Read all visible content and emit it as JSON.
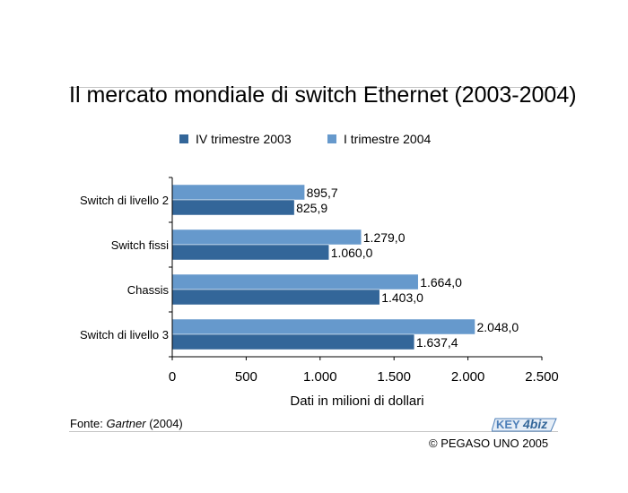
{
  "title": "Il mercato mondiale di switch Ethernet (2003-2004)",
  "footer": {
    "source_label": "Fonte:",
    "source_name": "Gartner",
    "source_year": "(2004)",
    "logo_text_1": "KEY",
    "logo_text_2": "4biz",
    "copyright": "© PEGASO UNO 2005"
  },
  "colors": {
    "series_2003": "#336699",
    "series_2004": "#6699cc",
    "logo": "#4d7fb8"
  },
  "icons": {
    "logo": "key4biz-logo-icon"
  },
  "chart_data": {
    "type": "bar",
    "orientation": "horizontal",
    "title": "Il mercato mondiale di switch Ethernet (2003-2004)",
    "xlabel": "Dati in milioni di dollari",
    "ylabel": "",
    "xlim": [
      0,
      2500
    ],
    "xticks": [
      "0",
      "500",
      "1.000",
      "1.500",
      "2.000",
      "2.500"
    ],
    "grid": false,
    "legend_position": "top",
    "categories": [
      "Switch di livello 2",
      "Switch fissi",
      "Chassis",
      "Switch di livello 3"
    ],
    "series": [
      {
        "name": "IV trimestre 2003",
        "color": "#336699",
        "values": [
          825.9,
          1060.0,
          1403.0,
          1637.4
        ],
        "labels": [
          "825,9",
          "1.060,0",
          "1.403,0",
          "1.637,4"
        ]
      },
      {
        "name": "I trimestre 2004",
        "color": "#6699cc",
        "values": [
          895.7,
          1279.0,
          1664.0,
          2048.0
        ],
        "labels": [
          "895,7",
          "1.279,0",
          "1.664,0",
          "2.048,0"
        ]
      }
    ]
  }
}
